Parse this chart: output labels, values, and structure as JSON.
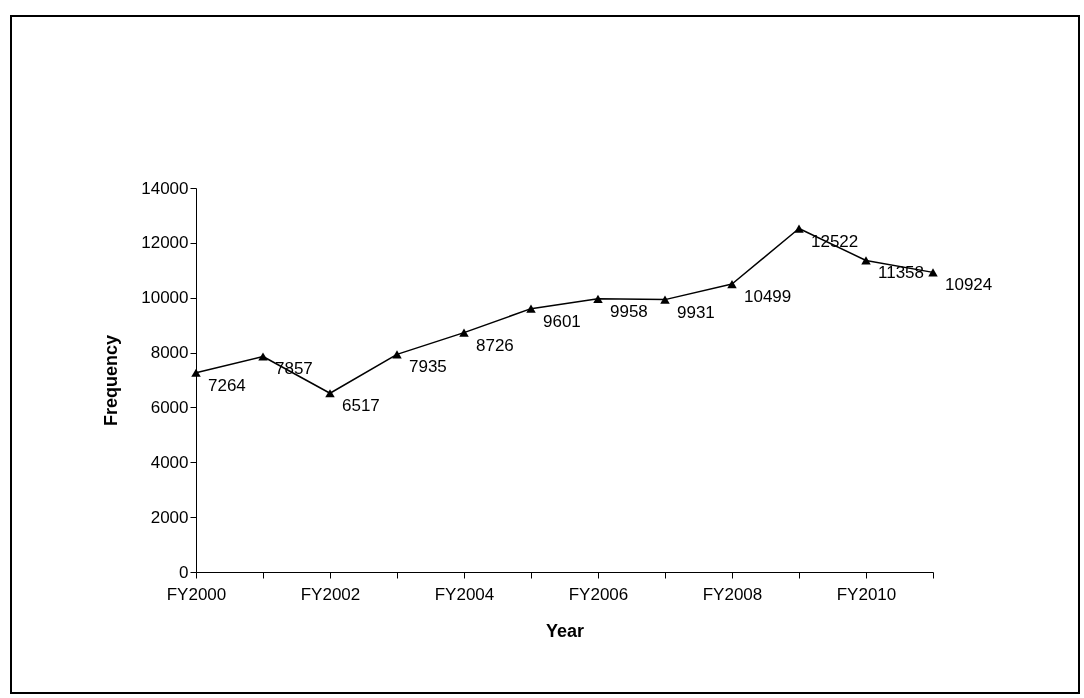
{
  "chart_data": {
    "type": "line",
    "xlabel": "Year",
    "ylabel": "Frequency",
    "categories": [
      "FY2000",
      null,
      "FY2002",
      null,
      "FY2004",
      null,
      "FY2006",
      null,
      "FY2008",
      null,
      "FY2010",
      null
    ],
    "series": [
      {
        "color": "#000000",
        "values": [
          7264,
          7857,
          6517,
          7935,
          8726,
          9601,
          9958,
          9931,
          10499,
          12522,
          11358,
          10924
        ]
      }
    ],
    "ylim": [
      0,
      14000
    ],
    "yticks": [
      0,
      2000,
      4000,
      6000,
      8000,
      10000,
      12000,
      14000
    ],
    "grid": false,
    "marker": "triangle",
    "line_style": "solid",
    "data_labels": true
  }
}
